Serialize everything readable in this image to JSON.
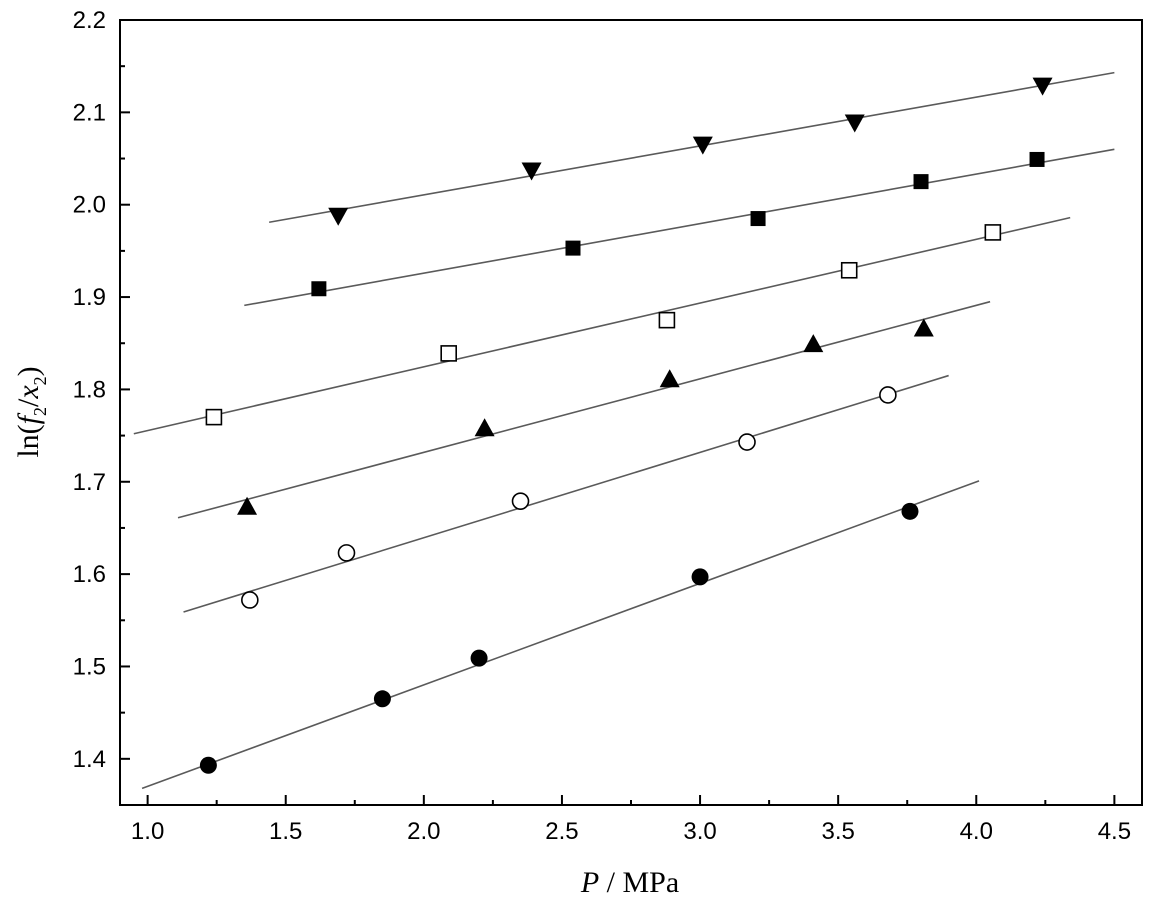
{
  "chart_data": {
    "type": "scatter",
    "xlabel": {
      "italic": "P",
      "rest": " / MPa"
    },
    "ylabel": {
      "prefix": "ln(",
      "f": "f",
      "sub1": "2",
      "slash": "/",
      "x": "x",
      "sub2": "2",
      "suffix": ")"
    },
    "xlim": [
      0.9,
      4.6
    ],
    "ylim": [
      1.35,
      2.2
    ],
    "x_ticks": [
      "1.0",
      "1.5",
      "2.0",
      "2.5",
      "3.0",
      "3.5",
      "4.0",
      "4.5"
    ],
    "y_ticks": [
      "1.4",
      "1.5",
      "1.6",
      "1.7",
      "1.8",
      "1.9",
      "2.0",
      "2.1",
      "2.2"
    ],
    "grid": false,
    "legend": "none",
    "series": [
      {
        "marker": "filled-triangle-down",
        "points": [
          [
            1.69,
            1.988
          ],
          [
            2.39,
            2.037
          ],
          [
            3.01,
            2.065
          ],
          [
            3.56,
            2.089
          ],
          [
            4.24,
            2.129
          ]
        ],
        "fit": [
          [
            1.44,
            1.981
          ],
          [
            4.5,
            2.143
          ]
        ]
      },
      {
        "marker": "filled-square",
        "points": [
          [
            1.62,
            1.909
          ],
          [
            2.54,
            1.953
          ],
          [
            3.21,
            1.985
          ],
          [
            3.8,
            2.025
          ],
          [
            4.22,
            2.049
          ]
        ],
        "fit": [
          [
            1.35,
            1.891
          ],
          [
            4.5,
            2.06
          ]
        ]
      },
      {
        "marker": "open-square",
        "points": [
          [
            1.24,
            1.77
          ],
          [
            2.09,
            1.839
          ],
          [
            2.88,
            1.875
          ],
          [
            3.54,
            1.929
          ],
          [
            4.06,
            1.97
          ]
        ],
        "fit": [
          [
            0.95,
            1.752
          ],
          [
            4.34,
            1.986
          ]
        ]
      },
      {
        "marker": "filled-triangle-up",
        "points": [
          [
            1.36,
            1.673
          ],
          [
            2.22,
            1.758
          ],
          [
            2.89,
            1.811
          ],
          [
            3.41,
            1.849
          ],
          [
            3.81,
            1.866
          ]
        ],
        "fit": [
          [
            1.11,
            1.661
          ],
          [
            4.05,
            1.895
          ]
        ]
      },
      {
        "marker": "open-circle",
        "points": [
          [
            1.37,
            1.572
          ],
          [
            1.72,
            1.623
          ],
          [
            2.35,
            1.679
          ],
          [
            3.17,
            1.743
          ],
          [
            3.68,
            1.794
          ]
        ],
        "fit": [
          [
            1.13,
            1.559
          ],
          [
            3.9,
            1.815
          ]
        ]
      },
      {
        "marker": "filled-circle",
        "points": [
          [
            1.22,
            1.393
          ],
          [
            1.85,
            1.465
          ],
          [
            2.2,
            1.509
          ],
          [
            3.0,
            1.597
          ],
          [
            3.76,
            1.668
          ]
        ],
        "fit": [
          [
            0.98,
            1.368
          ],
          [
            4.01,
            1.701
          ]
        ]
      }
    ]
  }
}
